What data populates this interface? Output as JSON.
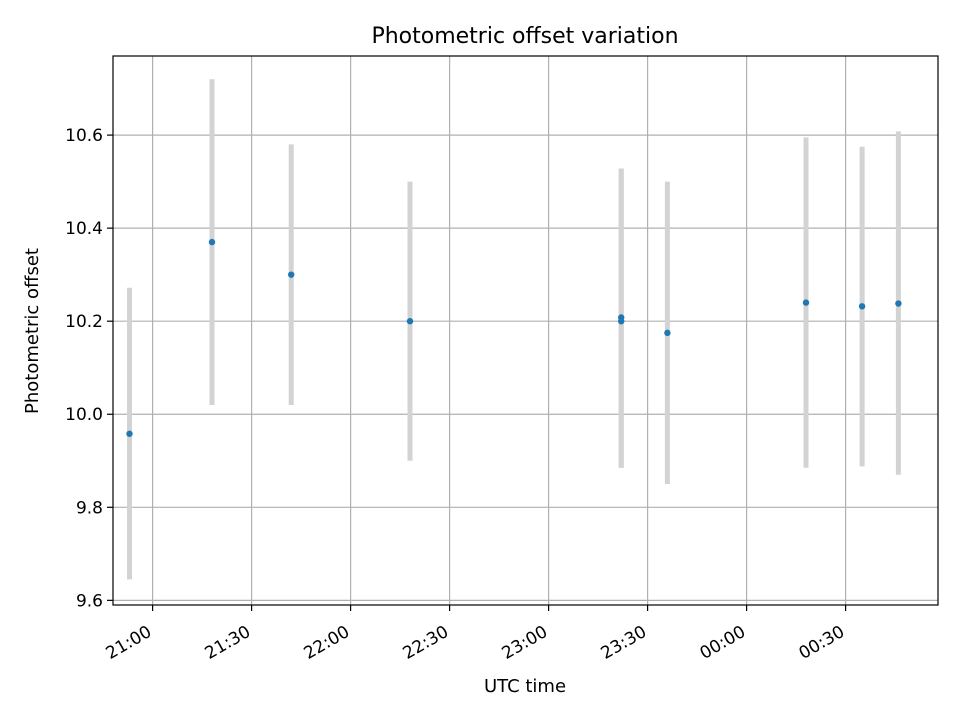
{
  "chart_data": {
    "type": "scatter",
    "title": "Photometric offset variation",
    "xlabel": "UTC time",
    "ylabel": "Photometric offset",
    "x_is_time": true,
    "xlim": [
      "20:48",
      "00:58"
    ],
    "ylim": [
      9.59,
      10.77
    ],
    "grid": true,
    "x_ticks": [
      "21:00",
      "21:30",
      "22:00",
      "22:30",
      "23:00",
      "23:30",
      "00:00",
      "00:30"
    ],
    "y_ticks": [
      9.6,
      9.8,
      10.0,
      10.2,
      10.4,
      10.6
    ],
    "y_tick_labels": [
      "9.6",
      "9.8",
      "10.0",
      "10.2",
      "10.4",
      "10.6"
    ],
    "point_color": "#1f77b4",
    "errorbar_color": "#d3d3d3",
    "points": [
      {
        "x": "20:53",
        "y": 9.958,
        "low": 9.645,
        "high": 10.272
      },
      {
        "x": "21:18",
        "y": 10.37,
        "low": 10.02,
        "high": 10.72
      },
      {
        "x": "21:42",
        "y": 10.3,
        "low": 10.02,
        "high": 10.58
      },
      {
        "x": "22:18",
        "y": 10.2,
        "low": 9.9,
        "high": 10.5
      },
      {
        "x": "23:22",
        "y": 10.2,
        "low": 9.885,
        "high": 10.528
      },
      {
        "x": "23:22",
        "y": 10.208,
        "low": 9.885,
        "high": 10.528
      },
      {
        "x": "23:36",
        "y": 10.175,
        "low": 9.85,
        "high": 10.5
      },
      {
        "x": "00:18",
        "y": 10.24,
        "low": 9.885,
        "high": 10.595
      },
      {
        "x": "00:35",
        "y": 10.232,
        "low": 9.888,
        "high": 10.575
      },
      {
        "x": "00:46",
        "y": 10.238,
        "low": 9.87,
        "high": 10.608
      }
    ]
  }
}
